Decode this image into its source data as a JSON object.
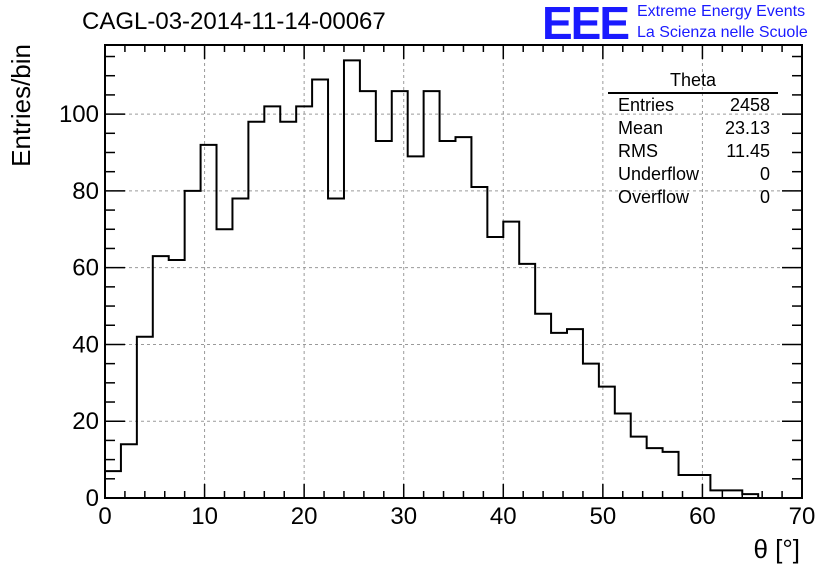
{
  "header": {
    "title": "CAGL-03-2014-11-14-00067",
    "logo_text": "EEE",
    "logo_line1": "Extreme Energy Events",
    "logo_line2": "La Scienza nelle Scuole"
  },
  "stats_box": {
    "title": "Theta",
    "rows": [
      {
        "label": "Entries",
        "value": "2458"
      },
      {
        "label": "Mean",
        "value": "23.13"
      },
      {
        "label": "RMS",
        "value": "11.45"
      },
      {
        "label": "Underflow",
        "value": "0"
      },
      {
        "label": "Overflow",
        "value": "0"
      }
    ]
  },
  "chart_data": {
    "type": "histogram",
    "title": "CAGL-03-2014-11-14-00067",
    "xlabel": "θ [°]",
    "ylabel": "Entries/bin",
    "xlim": [
      0,
      70
    ],
    "ylim": [
      0,
      118
    ],
    "xticks": [
      0,
      10,
      20,
      30,
      40,
      50,
      60,
      70
    ],
    "yticks": [
      0,
      20,
      40,
      60,
      80,
      100
    ],
    "grid": true,
    "bin_width": 1.6,
    "bin_start": 0,
    "values": [
      7,
      14,
      42,
      63,
      62,
      80,
      92,
      70,
      78,
      98,
      102,
      98,
      102,
      109,
      78,
      114,
      106,
      93,
      106,
      89,
      106,
      93,
      94,
      81,
      68,
      72,
      61,
      48,
      43,
      44,
      35,
      29,
      22,
      16,
      13,
      12,
      6,
      6,
      2,
      2,
      1,
      0,
      0,
      0
    ],
    "legend": "top-right"
  },
  "colors": {
    "axis": "#000000",
    "grid": "#9a9a9a",
    "histogram": "#000000",
    "logo": "#1a1aff"
  }
}
